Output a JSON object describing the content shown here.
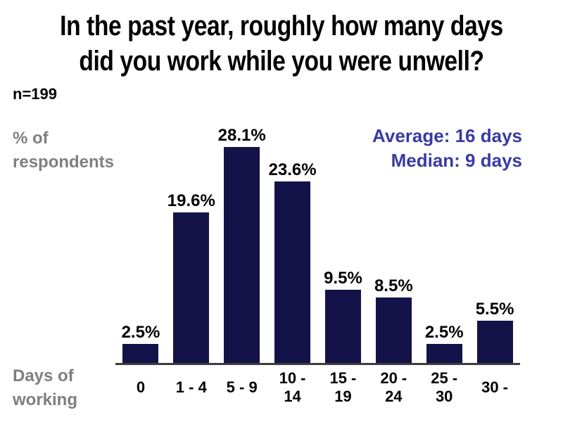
{
  "page": {
    "title_line1": "In the past year, roughly how many days",
    "title_line2": "did you work while you were unwell?",
    "sample_size_label": "n=199",
    "y_axis_caption": "% of\nrespondents",
    "x_axis_caption": "Days of\nworking",
    "annotation": {
      "average_line": "Average: 16 days",
      "median_line": "Median: 9 days"
    },
    "colors": {
      "bar": "#131349",
      "annotation_text": "#3A3AA3",
      "axis_line": "#3D3D3D",
      "muted_caption": "#7F7F7F",
      "title_text": "#000000"
    }
  },
  "chart_data": {
    "type": "bar",
    "title": "In the past year, roughly how many days did you work while you were unwell?",
    "sample_size": 199,
    "categories": [
      "0",
      "1 - 4",
      "5 - 9",
      "10 - 14",
      "15 - 19",
      "20 - 24",
      "25 - 30",
      "30 -"
    ],
    "category_display": [
      "0",
      "1 - 4",
      "5 - 9",
      "10 -\n14",
      "15 -\n19",
      "20 -\n24",
      "25 -\n30",
      "30 -"
    ],
    "values": [
      2.5,
      19.6,
      28.1,
      23.6,
      9.5,
      8.5,
      2.5,
      5.5
    ],
    "labels": [
      "2.5%",
      "19.6%",
      "28.1%",
      "23.6%",
      "9.5%",
      "8.5%",
      "2.5%",
      "5.5%"
    ],
    "xlabel": "Days of working",
    "ylabel": "% of respondents",
    "average_days": 16,
    "median_days": 9,
    "ylim": [
      0,
      30
    ],
    "grid": false,
    "legend": false,
    "data_labels": true
  }
}
